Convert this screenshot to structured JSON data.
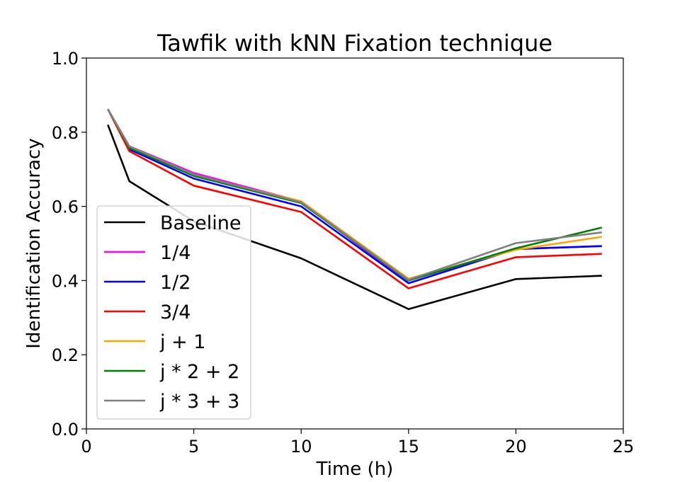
{
  "chart_data": {
    "type": "line",
    "title": "Tawfik with kNN Fixation technique",
    "xlabel": "Time (h)",
    "ylabel": "Identification Accuracy",
    "xlim": [
      0,
      25
    ],
    "ylim": [
      0.0,
      1.0
    ],
    "xticks": [
      0,
      5,
      10,
      15,
      20,
      25
    ],
    "yticks": [
      0.0,
      0.2,
      0.4,
      0.6,
      0.8,
      1.0
    ],
    "xtick_labels": [
      "0",
      "5",
      "10",
      "15",
      "20",
      "25"
    ],
    "ytick_labels": [
      "0.0",
      "0.2",
      "0.4",
      "0.6",
      "0.8",
      "1.0"
    ],
    "grid": false,
    "legend_position": "lower-left",
    "x": [
      1,
      2,
      5,
      10,
      15,
      20,
      24
    ],
    "series": [
      {
        "name": "Baseline",
        "color": "#000000",
        "values": [
          0.82,
          0.668,
          0.56,
          0.46,
          0.323,
          0.404,
          0.413
        ]
      },
      {
        "name": "1/4",
        "color": "#ff00ff",
        "values": [
          0.862,
          0.762,
          0.69,
          0.613,
          0.393,
          0.485,
          0.493
        ]
      },
      {
        "name": "1/2",
        "color": "#0000ff",
        "values": [
          0.862,
          0.754,
          0.675,
          0.6,
          0.393,
          0.485,
          0.493
        ]
      },
      {
        "name": "3/4",
        "color": "#ff0000",
        "values": [
          0.862,
          0.749,
          0.656,
          0.585,
          0.379,
          0.463,
          0.472
        ]
      },
      {
        "name": "j + 1",
        "color": "#ffa500",
        "values": [
          0.862,
          0.758,
          0.683,
          0.614,
          0.405,
          0.483,
          0.518
        ]
      },
      {
        "name": "j * 2 + 2",
        "color": "#008000",
        "values": [
          0.862,
          0.758,
          0.682,
          0.609,
          0.4,
          0.487,
          0.543
        ]
      },
      {
        "name": "j * 3 + 3",
        "color": "#808080",
        "values": [
          0.862,
          0.762,
          0.686,
          0.611,
          0.402,
          0.501,
          0.53
        ]
      }
    ]
  }
}
